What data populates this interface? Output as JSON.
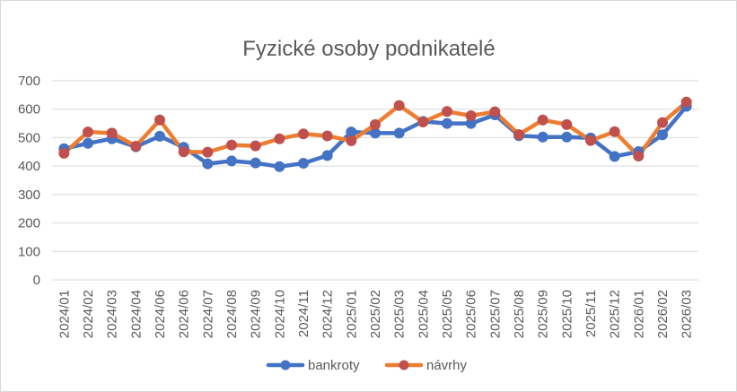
{
  "chart_data": {
    "type": "line",
    "title": "Fyzické osoby podnikatelé",
    "xlabel": "",
    "ylabel": "",
    "ylim": [
      0,
      700
    ],
    "yticks": [
      0,
      100,
      200,
      300,
      400,
      500,
      600,
      700
    ],
    "grid": true,
    "legend": "bottom",
    "categories": [
      "2024/01",
      "2024/02",
      "2024/03",
      "2024/04",
      "2024/06",
      "2024/06",
      "2024/07",
      "2024/08",
      "2024/09",
      "2024/10",
      "2024/11",
      "2024/12",
      "2025/01",
      "2025/02",
      "2025/03",
      "2025/04",
      "2025/05",
      "2025/06",
      "2025/07",
      "2025/08",
      "2025/09",
      "2025/10",
      "2025/11",
      "2025/12",
      "2026/01",
      "2026/02",
      "2026/03"
    ],
    "series": [
      {
        "name": "bankroty",
        "color": "#4472c4",
        "values": [
          461,
          480,
          496,
          468,
          505,
          466,
          408,
          418,
          411,
          398,
          410,
          437,
          520,
          516,
          516,
          557,
          550,
          550,
          580,
          507,
          502,
          502,
          499,
          434,
          451,
          510,
          610
        ]
      },
      {
        "name": "návrhy",
        "color": "#ed7d31",
        "marker_color": "#c0504d",
        "values": [
          445,
          520,
          516,
          470,
          562,
          450,
          449,
          474,
          471,
          496,
          513,
          506,
          489,
          546,
          613,
          555,
          592,
          577,
          591,
          511,
          562,
          546,
          490,
          521,
          435,
          553,
          625
        ]
      }
    ]
  }
}
